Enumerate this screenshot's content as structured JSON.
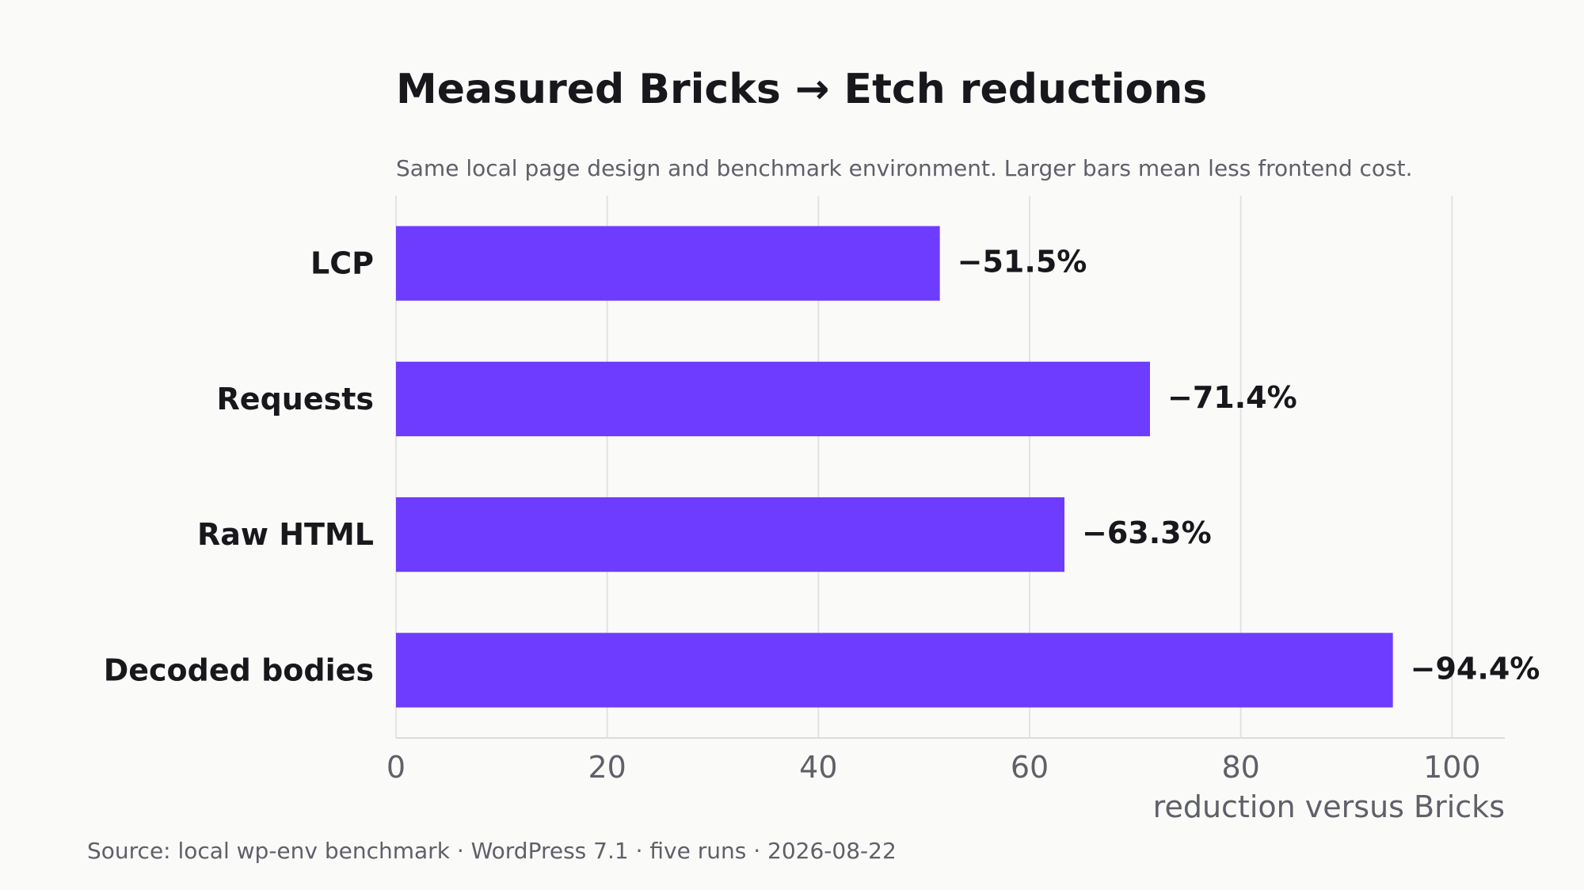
{
  "chart_data": {
    "type": "bar",
    "orientation": "horizontal",
    "title": "Measured Bricks → Etch reductions",
    "subtitle": "Same local page design and benchmark environment. Larger bars mean less frontend cost.",
    "categories": [
      "LCP",
      "Requests",
      "Raw HTML",
      "Decoded bodies"
    ],
    "values": [
      51.5,
      71.4,
      63.3,
      94.4
    ],
    "value_labels": [
      "−51.5%",
      "−71.4%",
      "−63.3%",
      "−94.4%"
    ],
    "xlabel": "reduction versus Bricks",
    "ylabel": "",
    "xlim": [
      0,
      105
    ],
    "xticks": [
      0,
      20,
      40,
      60,
      80,
      100
    ],
    "grid": "vertical",
    "legend": "none",
    "bar_color": "#6e3cff"
  },
  "source": "Source: local wp-env benchmark · WordPress 7.1 · five runs · 2026-08-22"
}
